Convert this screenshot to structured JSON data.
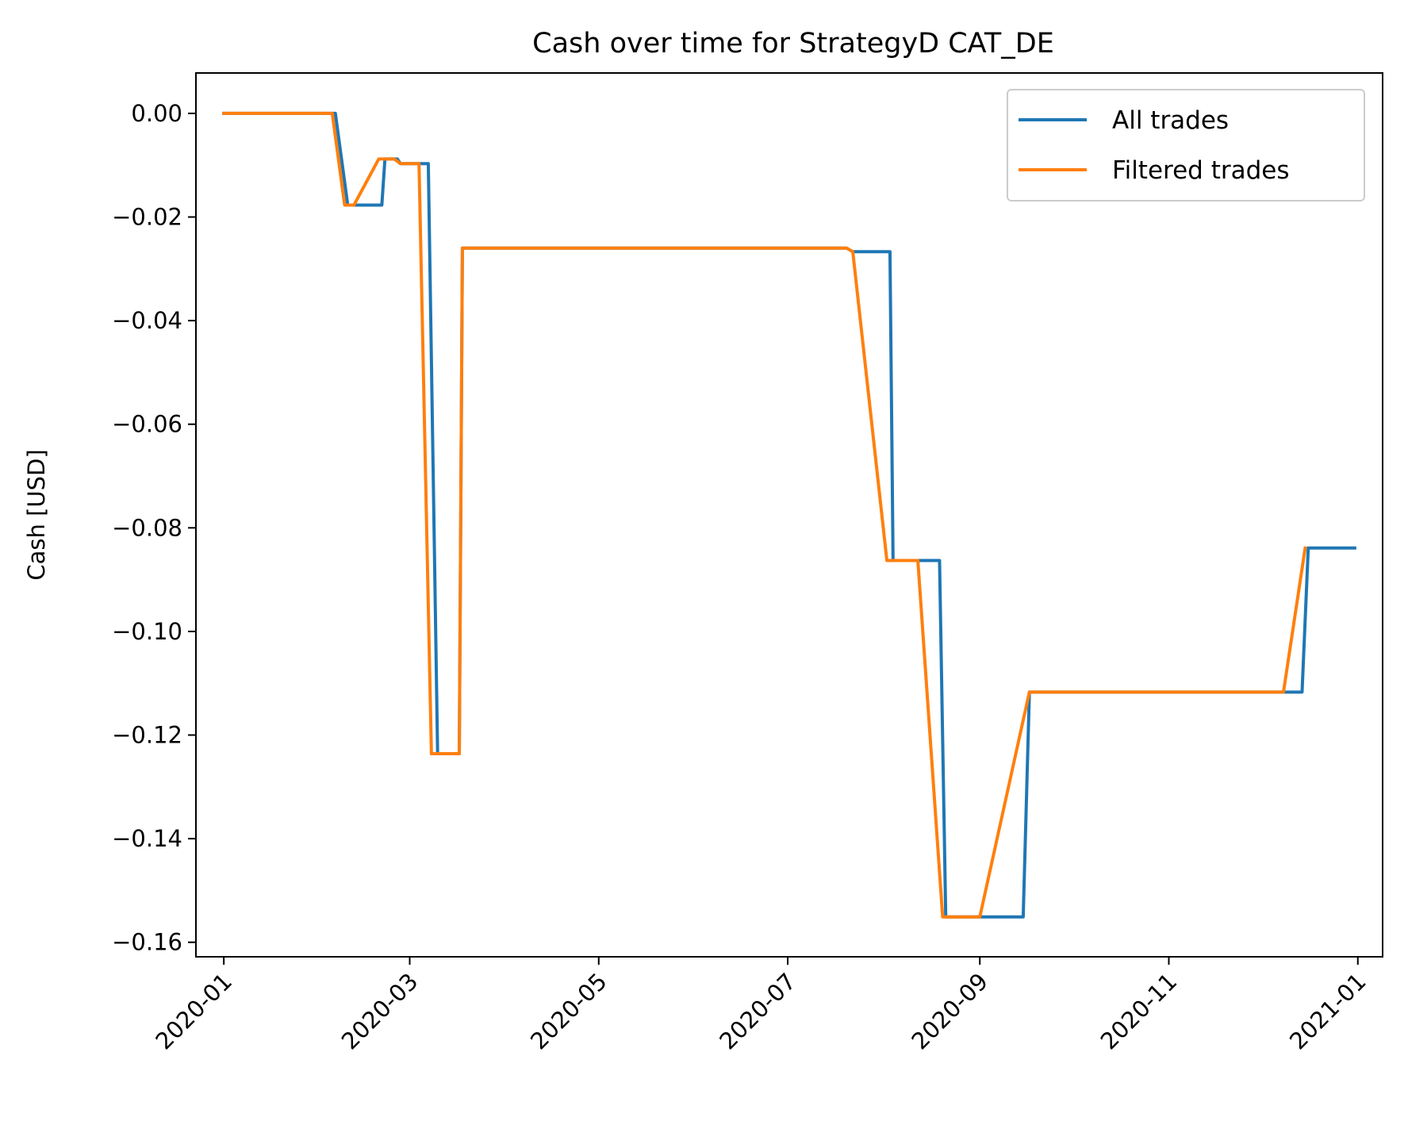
{
  "chart_data": {
    "type": "line",
    "title": "Cash over time for StrategyD CAT_DE",
    "xlabel": "",
    "ylabel": "Cash [USD]",
    "xlim": [
      "2019-12-23",
      "2021-01-09"
    ],
    "ylim": [
      -0.1628,
      0.0078
    ],
    "x_ticks": [
      "2020-01",
      "2020-03",
      "2020-05",
      "2020-07",
      "2020-09",
      "2020-11",
      "2021-01"
    ],
    "y_ticks": [
      0.0,
      -0.02,
      -0.04,
      -0.06,
      -0.08,
      -0.1,
      -0.12,
      -0.14,
      -0.16
    ],
    "y_tick_labels": [
      "0.00",
      "−0.02",
      "−0.04",
      "−0.06",
      "−0.08",
      "−0.10",
      "−0.12",
      "−0.14",
      "−0.16"
    ],
    "grid": false,
    "legend": {
      "position": "top-right"
    },
    "series": [
      {
        "name": "All trades",
        "color": "#1f77b4",
        "x": [
          "2020-01-01",
          "2020-02-06",
          "2020-02-10",
          "2020-02-21",
          "2020-02-22",
          "2020-02-26",
          "2020-02-27",
          "2020-03-07",
          "2020-03-10",
          "2020-03-17",
          "2020-03-18",
          "2020-07-20",
          "2020-07-22",
          "2020-08-03",
          "2020-08-04",
          "2020-08-19",
          "2020-08-21",
          "2020-09-15",
          "2020-09-17",
          "2020-12-14",
          "2020-12-16",
          "2020-12-31"
        ],
        "y": [
          0.0,
          0.0,
          -0.0177,
          -0.0177,
          -0.0088,
          -0.0088,
          -0.0097,
          -0.0097,
          -0.1236,
          -0.1236,
          -0.026,
          -0.026,
          -0.0267,
          -0.0267,
          -0.0863,
          -0.0863,
          -0.1551,
          -0.1551,
          -0.1117,
          -0.1117,
          -0.0839,
          -0.0839
        ]
      },
      {
        "name": "Filtered trades",
        "color": "#ff7f0e",
        "x": [
          "2020-01-01",
          "2020-02-05",
          "2020-02-09",
          "2020-02-12",
          "2020-02-20",
          "2020-02-25",
          "2020-02-27",
          "2020-03-04",
          "2020-03-08",
          "2020-03-17",
          "2020-03-18",
          "2020-07-20",
          "2020-07-22",
          "2020-08-02",
          "2020-08-12",
          "2020-08-20",
          "2020-09-01",
          "2020-09-17",
          "2020-12-08",
          "2020-12-15"
        ],
        "y": [
          0.0,
          0.0,
          -0.0177,
          -0.0177,
          -0.0088,
          -0.0088,
          -0.0097,
          -0.0097,
          -0.1236,
          -0.1236,
          -0.026,
          -0.026,
          -0.0267,
          -0.0863,
          -0.0863,
          -0.1551,
          -0.1551,
          -0.1117,
          -0.1117,
          -0.0839
        ]
      }
    ]
  }
}
